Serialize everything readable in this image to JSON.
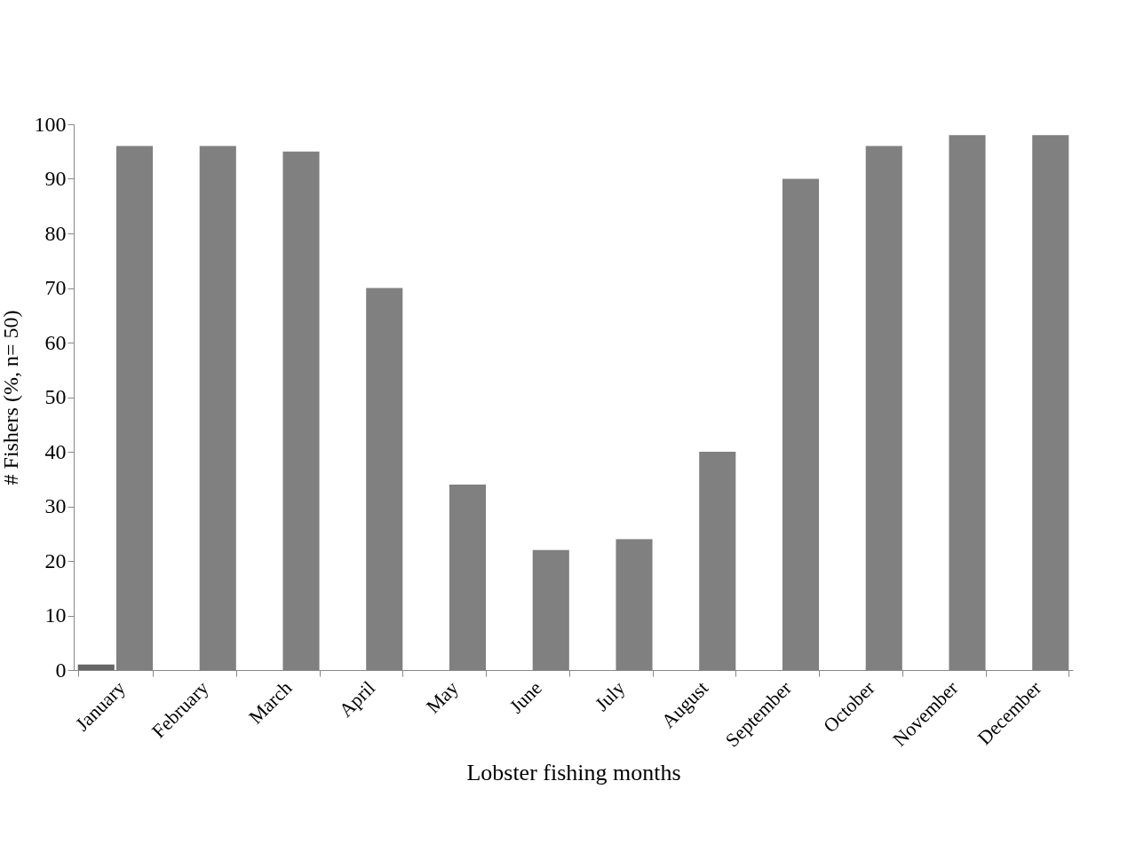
{
  "chart_data": {
    "type": "bar",
    "xlabel": "Lobster fishing months",
    "ylabel": "# Fishers (%, n= 50)",
    "categories": [
      "January",
      "February",
      "March",
      "April",
      "May",
      "June",
      "July",
      "August",
      "September",
      "October",
      "November",
      "December"
    ],
    "series": [
      {
        "color": "#666666",
        "values": [
          1,
          null,
          null,
          null,
          null,
          null,
          null,
          null,
          null,
          null,
          null,
          null
        ]
      },
      {
        "color": "#808080",
        "values": [
          96,
          96,
          95,
          70,
          34,
          22,
          24,
          40,
          90,
          96,
          98,
          98
        ]
      }
    ],
    "ylim": [
      0,
      100
    ],
    "yticks": [
      0,
      10,
      20,
      30,
      40,
      50,
      60,
      70,
      80,
      90,
      100
    ],
    "grid": false,
    "legend": false
  }
}
